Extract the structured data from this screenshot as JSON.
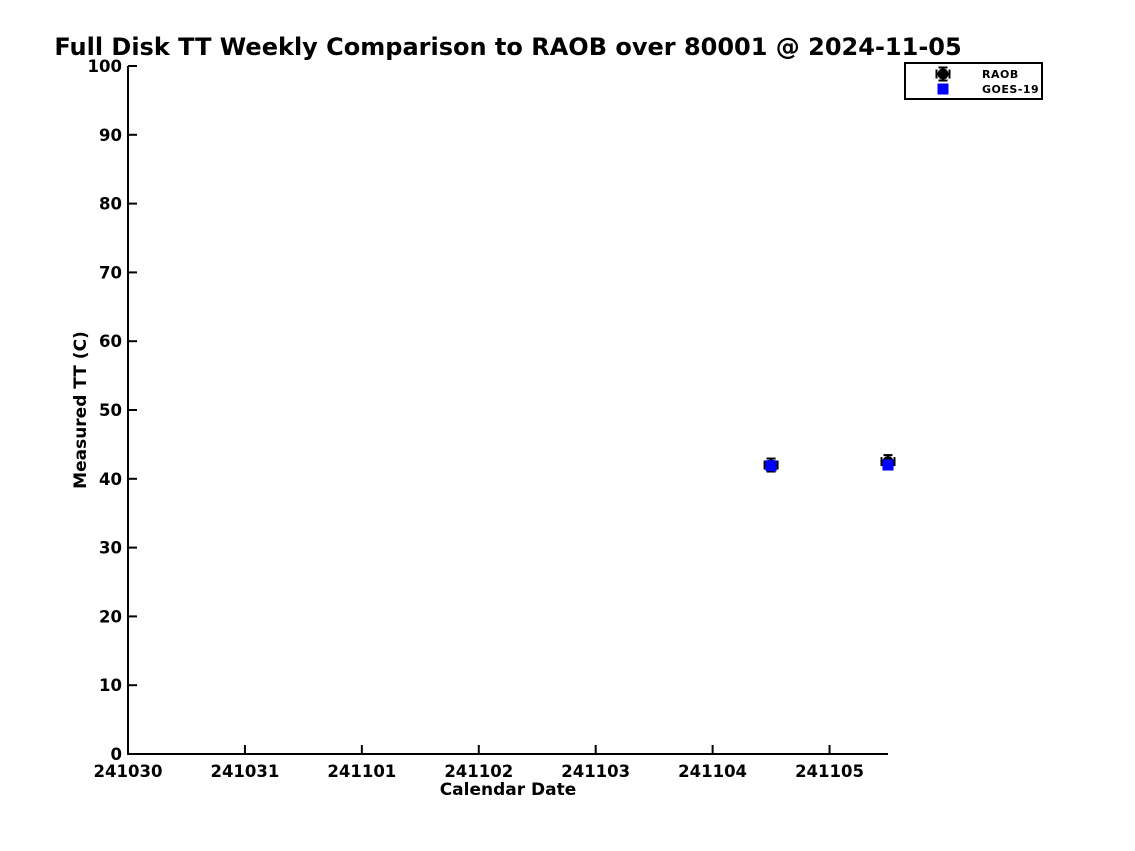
{
  "chart_data": {
    "type": "scatter",
    "title": "Full Disk TT Weekly Comparison to RAOB over 80001 @ 2024-11-05",
    "xlabel": "Calendar Date",
    "ylabel": "Measured TT (C)",
    "x_ticks": [
      {
        "label": "241030",
        "day": 0
      },
      {
        "label": "241031",
        "day": 1
      },
      {
        "label": "241101",
        "day": 2
      },
      {
        "label": "241102",
        "day": 3
      },
      {
        "label": "241103",
        "day": 4
      },
      {
        "label": "241104",
        "day": 5
      },
      {
        "label": "241105",
        "day": 6
      }
    ],
    "xlim_days": [
      0,
      6.5
    ],
    "y_ticks": [
      0,
      10,
      20,
      30,
      40,
      50,
      60,
      70,
      80,
      90,
      100
    ],
    "ylim": [
      0,
      100
    ],
    "grid": false,
    "axis_color": "#000000",
    "background_color": "#ffffff",
    "legend": {
      "position": "top-right",
      "entries": [
        "RAOB",
        "GOES-19"
      ]
    },
    "series": [
      {
        "name": "RAOB",
        "marker": "circle-errorbar",
        "color": "#000000",
        "points": [
          {
            "x": 241104.5,
            "day": 5.5,
            "y": 42.0
          },
          {
            "x": 241105.5,
            "day": 6.5,
            "y": 42.5
          }
        ]
      },
      {
        "name": "GOES-19",
        "marker": "square",
        "color": "#0000ff",
        "points": [
          {
            "x": 241104.5,
            "day": 5.5,
            "y": 41.9
          },
          {
            "x": 241105.5,
            "day": 6.5,
            "y": 42.0
          }
        ]
      }
    ]
  }
}
